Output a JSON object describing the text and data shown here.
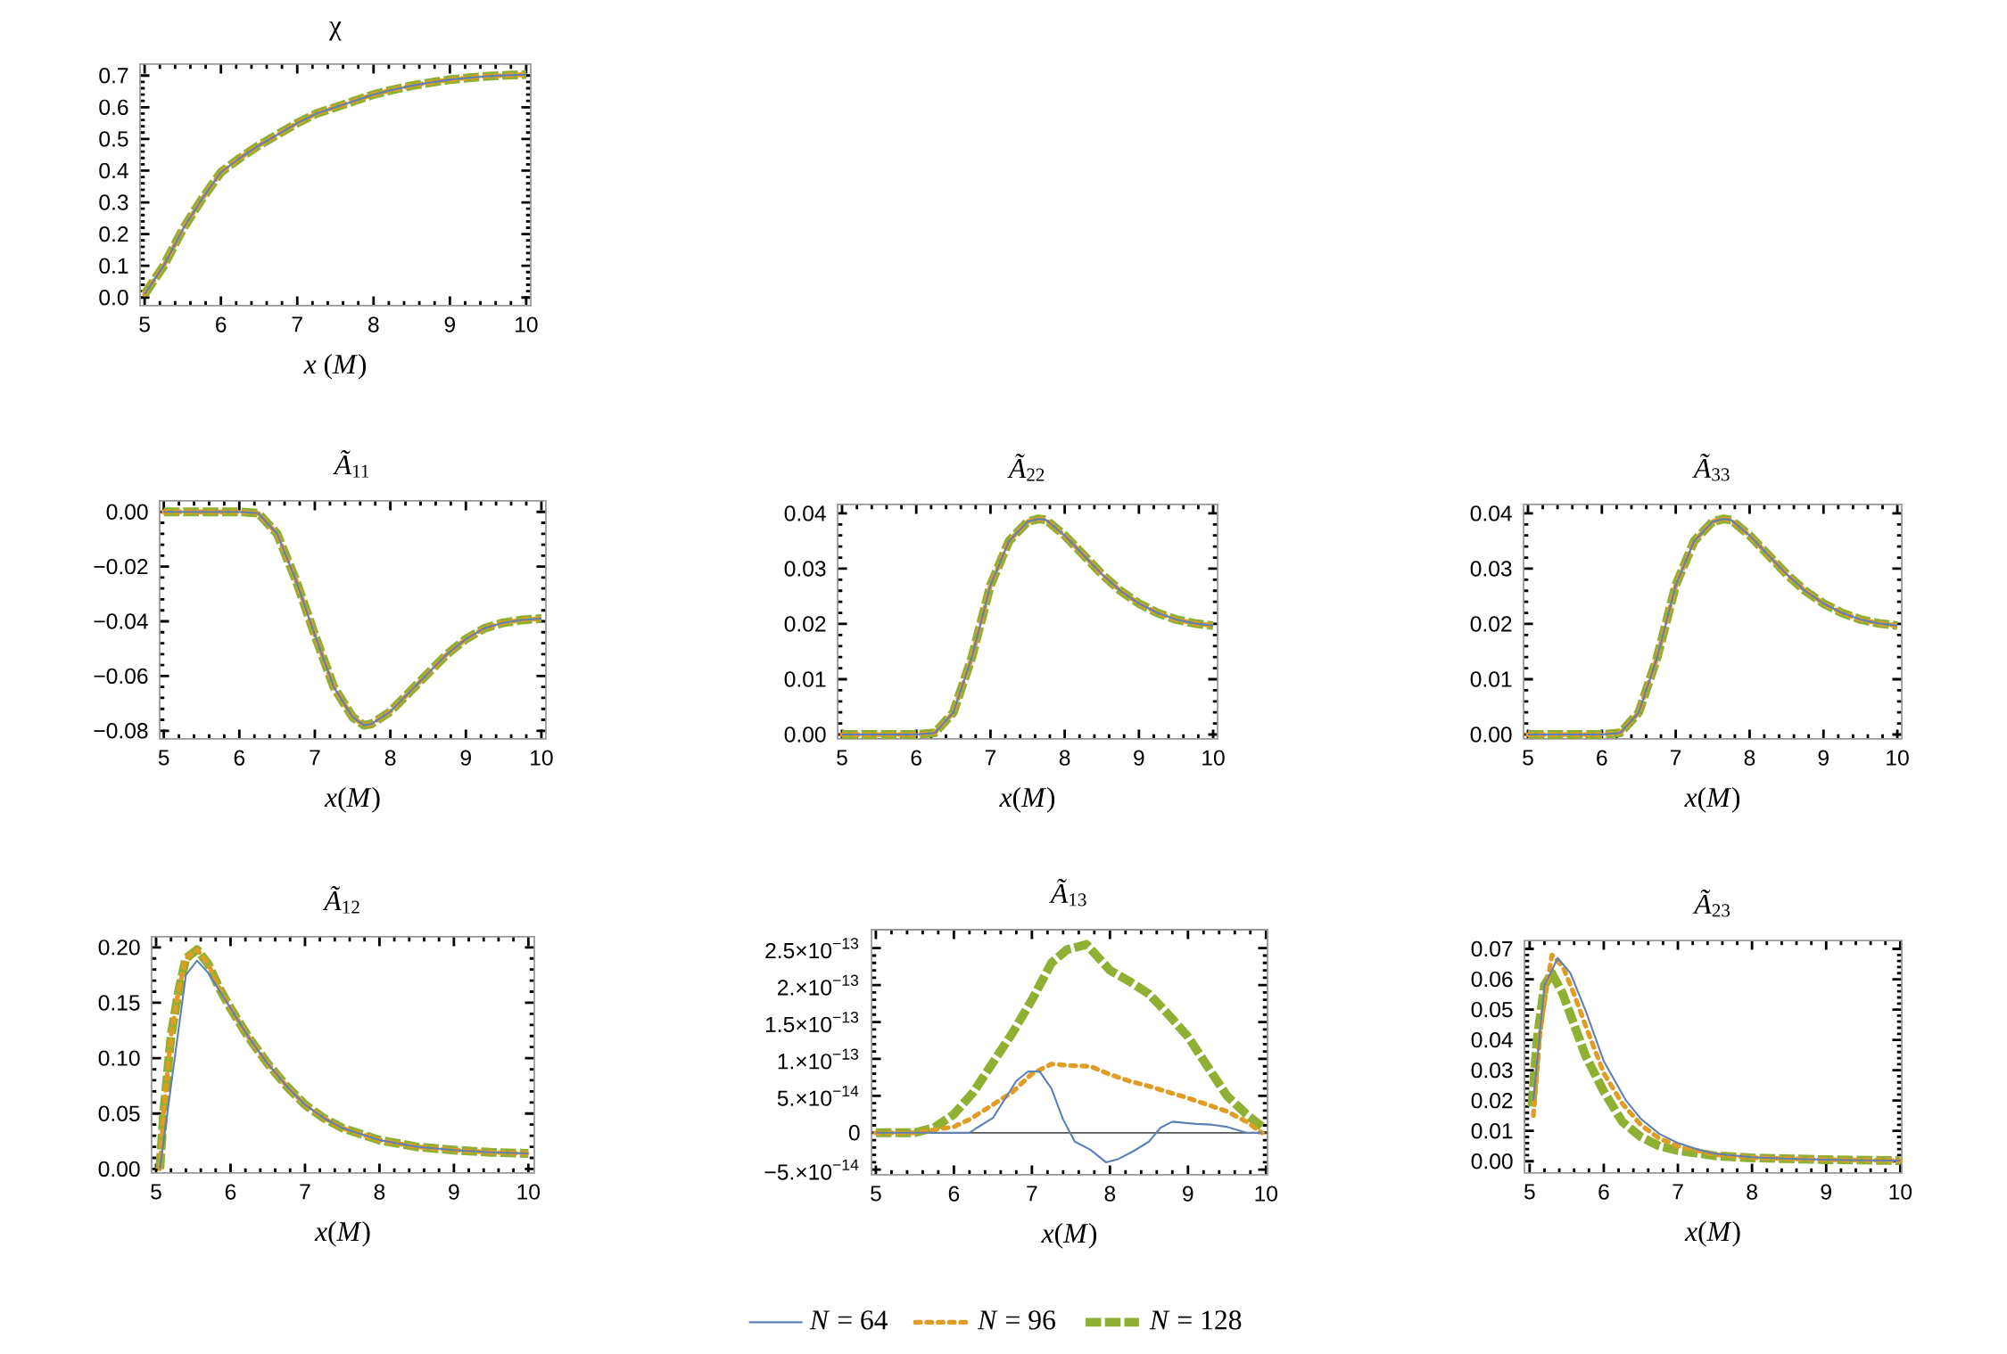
{
  "chart_data": [
    {
      "type": "line",
      "title": "χ",
      "xlabel": "*x* (*M*)",
      "xlim": [
        4.94,
        10.06
      ],
      "ylim": [
        -0.026,
        0.736
      ],
      "xticks": [
        5,
        6,
        7,
        8,
        9,
        10
      ],
      "yticks": [
        {
          "value": 0,
          "label": "0.0"
        },
        {
          "value": 0.1,
          "label": "0.1"
        },
        {
          "value": 0.2,
          "label": "0.2"
        },
        {
          "value": 0.3,
          "label": "0.3"
        },
        {
          "value": 0.4,
          "label": "0.4"
        },
        {
          "value": 0.5,
          "label": "0.5"
        },
        {
          "value": 0.6,
          "label": "0.6"
        },
        {
          "value": 0.7,
          "label": "0.7"
        }
      ],
      "x": [
        5,
        5.25,
        5.5,
        5.75,
        6,
        6.25,
        6.5,
        6.75,
        7,
        7.25,
        7.5,
        7.75,
        8,
        8.25,
        8.5,
        8.75,
        9,
        9.25,
        9.5,
        9.75,
        10
      ],
      "series": [
        {
          "color": "#5e81b5",
          "line_style": "solid",
          "values": [
            0.01,
            0.1,
            0.215,
            0.31,
            0.395,
            0.44,
            0.48,
            0.515,
            0.55,
            0.58,
            0.6,
            0.62,
            0.64,
            0.655,
            0.668,
            0.678,
            0.687,
            0.693,
            0.698,
            0.701,
            0.703
          ]
        },
        {
          "color": "#e19c24",
          "line_style": "dotted",
          "values": [
            0.01,
            0.1,
            0.215,
            0.31,
            0.395,
            0.44,
            0.48,
            0.515,
            0.55,
            0.58,
            0.6,
            0.62,
            0.64,
            0.655,
            0.668,
            0.678,
            0.687,
            0.693,
            0.698,
            0.701,
            0.703
          ]
        },
        {
          "color": "#8fb032",
          "line_style": "dashed",
          "values": [
            0.01,
            0.1,
            0.215,
            0.31,
            0.395,
            0.44,
            0.48,
            0.515,
            0.55,
            0.58,
            0.6,
            0.62,
            0.64,
            0.655,
            0.668,
            0.678,
            0.687,
            0.693,
            0.698,
            0.701,
            0.703
          ]
        }
      ]
    },
    {
      "type": "line",
      "title": "*Ã*$_{11}$",
      "xlabel": "*x*(*M*)",
      "xlim": [
        4.945,
        10.06
      ],
      "ylim": [
        -0.083,
        0.004
      ],
      "xticks": [
        5,
        6,
        7,
        8,
        9,
        10
      ],
      "yticks": [
        {
          "value": 0,
          "label": "0.00"
        },
        {
          "value": -0.02,
          "label": "−0.02"
        },
        {
          "value": -0.04,
          "label": "−0.04"
        },
        {
          "value": -0.06,
          "label": "−0.06"
        },
        {
          "value": -0.08,
          "label": "−0.08"
        }
      ],
      "x": [
        5,
        5.5,
        6,
        6.25,
        6.5,
        6.75,
        7,
        7.25,
        7.5,
        7.65,
        7.75,
        8,
        8.25,
        8.5,
        8.75,
        9,
        9.25,
        9.5,
        9.75,
        10
      ],
      "series": [
        {
          "color": "#5e81b5",
          "line_style": "solid",
          "values": [
            0,
            0,
            0,
            -0.0005,
            -0.008,
            -0.025,
            -0.045,
            -0.064,
            -0.075,
            -0.078,
            -0.0775,
            -0.073,
            -0.066,
            -0.059,
            -0.052,
            -0.0465,
            -0.0425,
            -0.0405,
            -0.0395,
            -0.039
          ]
        },
        {
          "color": "#e19c24",
          "line_style": "dotted",
          "values": [
            0,
            0,
            0,
            -0.0005,
            -0.008,
            -0.025,
            -0.045,
            -0.064,
            -0.075,
            -0.078,
            -0.0775,
            -0.073,
            -0.066,
            -0.059,
            -0.052,
            -0.0465,
            -0.0425,
            -0.0405,
            -0.0395,
            -0.039
          ]
        },
        {
          "color": "#8fb032",
          "line_style": "dashed",
          "values": [
            0,
            0,
            0,
            -0.0005,
            -0.008,
            -0.025,
            -0.045,
            -0.064,
            -0.075,
            -0.078,
            -0.0775,
            -0.073,
            -0.066,
            -0.059,
            -0.052,
            -0.0465,
            -0.0425,
            -0.0405,
            -0.0395,
            -0.039
          ]
        }
      ]
    },
    {
      "type": "line",
      "title": "*Ã*$_{22}$",
      "xlabel": "*x*(*M*)",
      "xlim": [
        4.94,
        10.06
      ],
      "ylim": [
        -0.0008,
        0.0416
      ],
      "xticks": [
        5,
        6,
        7,
        8,
        9,
        10
      ],
      "yticks": [
        {
          "value": 0,
          "label": "0.00"
        },
        {
          "value": 0.01,
          "label": "0.01"
        },
        {
          "value": 0.02,
          "label": "0.02"
        },
        {
          "value": 0.03,
          "label": "0.03"
        },
        {
          "value": 0.04,
          "label": "0.04"
        }
      ],
      "x": [
        5,
        5.5,
        6,
        6.25,
        6.5,
        6.75,
        7,
        7.25,
        7.5,
        7.65,
        7.75,
        8,
        8.25,
        8.5,
        8.75,
        9,
        9.25,
        9.5,
        9.75,
        10
      ],
      "series": [
        {
          "color": "#5e81b5",
          "line_style": "solid",
          "values": [
            0,
            0,
            0,
            0.0003,
            0.004,
            0.014,
            0.027,
            0.035,
            0.0385,
            0.039,
            0.0388,
            0.036,
            0.0325,
            0.029,
            0.026,
            0.0237,
            0.022,
            0.0208,
            0.0201,
            0.0197
          ]
        },
        {
          "color": "#e19c24",
          "line_style": "dotted",
          "values": [
            0,
            0,
            0,
            0.0003,
            0.004,
            0.014,
            0.027,
            0.035,
            0.0385,
            0.039,
            0.0388,
            0.036,
            0.0325,
            0.029,
            0.026,
            0.0237,
            0.022,
            0.0208,
            0.0201,
            0.0197
          ]
        },
        {
          "color": "#8fb032",
          "line_style": "dashed",
          "values": [
            0,
            0,
            0,
            0.0003,
            0.004,
            0.014,
            0.027,
            0.035,
            0.0385,
            0.039,
            0.0388,
            0.036,
            0.0325,
            0.029,
            0.026,
            0.0237,
            0.022,
            0.0208,
            0.0201,
            0.0197
          ]
        }
      ]
    },
    {
      "type": "line",
      "title": "*Ã*$_{33}$",
      "xlabel": "*x*(*M*)",
      "xlim": [
        4.94,
        10.06
      ],
      "ylim": [
        -0.0008,
        0.0416
      ],
      "xticks": [
        5,
        6,
        7,
        8,
        9,
        10
      ],
      "yticks": [
        {
          "value": 0,
          "label": "0.00"
        },
        {
          "value": 0.01,
          "label": "0.01"
        },
        {
          "value": 0.02,
          "label": "0.02"
        },
        {
          "value": 0.03,
          "label": "0.03"
        },
        {
          "value": 0.04,
          "label": "0.04"
        }
      ],
      "x": [
        5,
        5.5,
        6,
        6.25,
        6.5,
        6.75,
        7,
        7.25,
        7.5,
        7.65,
        7.75,
        8,
        8.25,
        8.5,
        8.75,
        9,
        9.25,
        9.5,
        9.75,
        10
      ],
      "series": [
        {
          "color": "#5e81b5",
          "line_style": "solid",
          "values": [
            0,
            0,
            0,
            0.0003,
            0.004,
            0.014,
            0.027,
            0.035,
            0.0385,
            0.039,
            0.0388,
            0.036,
            0.0325,
            0.029,
            0.026,
            0.0237,
            0.022,
            0.0208,
            0.0201,
            0.0197
          ]
        },
        {
          "color": "#e19c24",
          "line_style": "dotted",
          "values": [
            0,
            0,
            0,
            0.0003,
            0.004,
            0.014,
            0.027,
            0.035,
            0.0385,
            0.039,
            0.0388,
            0.036,
            0.0325,
            0.029,
            0.026,
            0.0237,
            0.022,
            0.0208,
            0.0201,
            0.0197
          ]
        },
        {
          "color": "#8fb032",
          "line_style": "dashed",
          "values": [
            0,
            0,
            0,
            0.0003,
            0.004,
            0.014,
            0.027,
            0.035,
            0.0385,
            0.039,
            0.0388,
            0.036,
            0.0325,
            0.029,
            0.026,
            0.0237,
            0.022,
            0.0208,
            0.0201,
            0.0197
          ]
        }
      ]
    },
    {
      "type": "line",
      "title": "*Ã*$_{12}$",
      "xlabel": "*x*(*M*)",
      "xlim": [
        4.94,
        10.08
      ],
      "ylim": [
        -0.0037,
        0.2095
      ],
      "xticks": [
        5,
        6,
        7,
        8,
        9,
        10
      ],
      "yticks": [
        {
          "value": 0,
          "label": "0.00"
        },
        {
          "value": 0.05,
          "label": "0.05"
        },
        {
          "value": 0.1,
          "label": "0.10"
        },
        {
          "value": 0.15,
          "label": "0.15"
        },
        {
          "value": 0.2,
          "label": "0.20"
        }
      ],
      "series": [
        {
          "color": "#5e81b5",
          "line_style": "solid",
          "x": [
            5.05,
            5.4,
            5.55,
            5.7,
            6,
            6.25,
            6.5,
            6.75,
            7,
            7.25,
            7.5,
            8,
            8.5,
            9,
            9.5,
            10
          ],
          "values": [
            0,
            0.175,
            0.188,
            0.177,
            0.145,
            0.118,
            0.095,
            0.075,
            0.058,
            0.046,
            0.037,
            0.026,
            0.02,
            0.017,
            0.015,
            0.014
          ]
        },
        {
          "color": "#e19c24",
          "line_style": "dotted",
          "x": [
            5.05,
            5.1,
            5.2,
            5.3,
            5.4,
            5.55,
            5.7,
            5.85,
            6,
            6.25,
            6.5,
            6.75,
            7,
            7.25,
            7.5,
            8,
            8.5,
            9,
            9.5,
            10
          ],
          "values": [
            0,
            0.05,
            0.12,
            0.16,
            0.19,
            0.198,
            0.185,
            0.163,
            0.145,
            0.118,
            0.095,
            0.075,
            0.058,
            0.046,
            0.037,
            0.026,
            0.02,
            0.017,
            0.015,
            0.014
          ]
        },
        {
          "color": "#8fb032",
          "line_style": "dashed",
          "x": [
            5.05,
            5.1,
            5.2,
            5.3,
            5.4,
            5.55,
            5.7,
            5.85,
            6,
            6.25,
            6.5,
            6.75,
            7,
            7.25,
            7.5,
            8,
            8.5,
            9,
            9.5,
            10
          ],
          "values": [
            0,
            0.05,
            0.12,
            0.16,
            0.19,
            0.198,
            0.185,
            0.163,
            0.145,
            0.118,
            0.095,
            0.075,
            0.058,
            0.046,
            0.037,
            0.026,
            0.02,
            0.017,
            0.015,
            0.014
          ]
        }
      ]
    },
    {
      "type": "line",
      "title": "*Ã*$_{13}$",
      "xlabel": "*x*(*M*)",
      "xlim": [
        4.944,
        10.02
      ],
      "ylim": [
        -5.7e-14,
        2.75e-13
      ],
      "xticks": [
        5,
        6,
        7,
        8,
        9,
        10
      ],
      "yticks": [
        {
          "value": -5e-14,
          "label": "−5.×10$^{−14}$"
        },
        {
          "value": 0,
          "label": "0"
        },
        {
          "value": 5e-14,
          "label": "5.×10$^{−14}$"
        },
        {
          "value": 1e-13,
          "label": "1.×10$^{−13}$"
        },
        {
          "value": 1.5e-13,
          "label": "1.5×10$^{−13}$"
        },
        {
          "value": 2e-13,
          "label": "2.×10$^{−13}$"
        },
        {
          "value": 2.5e-13,
          "label": "2.5×10$^{−13}$"
        }
      ],
      "ref_lines": [
        {
          "axis": "y",
          "value": 0,
          "color": "#555555"
        }
      ],
      "legend": "bottom",
      "series": [
        {
          "name": "*N* = 64",
          "color": "#5e81b5",
          "line_style": "solid",
          "x": [
            5,
            5.5,
            6,
            6.2,
            6.3,
            6.5,
            6.65,
            6.8,
            6.95,
            7.1,
            7.25,
            7.4,
            7.55,
            7.75,
            7.95,
            8.1,
            8.3,
            8.5,
            8.65,
            8.8,
            9.1,
            9.3,
            9.5,
            9.75,
            9.95
          ],
          "values": [
            0,
            0,
            0,
            0,
            7e-15,
            2e-14,
            4.5e-14,
            7e-14,
            8.3e-14,
            8.3e-14,
            6e-14,
            1.8e-14,
            -1.2e-14,
            -2.3e-14,
            -4e-14,
            -3.6e-14,
            -2.5e-14,
            -1.2e-14,
            7e-15,
            1.5e-14,
            1.2e-14,
            1.1e-14,
            8e-15,
            0,
            0
          ]
        },
        {
          "name": "*N* = 96",
          "color": "#e19c24",
          "line_style": "dotted",
          "x": [
            5,
            5.5,
            6,
            6.2,
            6.5,
            6.75,
            7,
            7.25,
            7.5,
            7.75,
            8,
            8.25,
            8.5,
            8.75,
            9,
            9.25,
            9.5,
            9.75,
            9.95
          ],
          "values": [
            0,
            0,
            8e-15,
            1.8e-14,
            3.8e-14,
            5.5e-14,
            8e-14,
            9.3e-14,
            9.1e-14,
            9e-14,
            7.9e-14,
            7e-14,
            6.3e-14,
            5.5e-14,
            4.7e-14,
            3.8e-14,
            2.9e-14,
            1.5e-14,
            0
          ]
        },
        {
          "name": "*N* = 128",
          "color": "#8fb032",
          "line_style": "dashed",
          "x": [
            5,
            5.5,
            5.75,
            6,
            6.25,
            6.5,
            6.75,
            7,
            7.25,
            7.45,
            7.7,
            8,
            8.25,
            8.5,
            8.75,
            9,
            9.25,
            9.5,
            9.75,
            9.95
          ],
          "values": [
            0,
            0,
            7e-15,
            2.5e-14,
            5.5e-14,
            9.5e-14,
            1.35e-13,
            1.8e-13,
            2.3e-13,
            2.48e-13,
            2.55e-13,
            2.2e-13,
            2.05e-13,
            1.88e-13,
            1.6e-13,
            1.3e-13,
            9e-14,
            5e-14,
            2.5e-14,
            8e-15
          ]
        }
      ]
    },
    {
      "type": "line",
      "title": "*Ã*$_{23}$",
      "xlabel": "*x*(*M*)",
      "xlim": [
        4.93,
        10.02
      ],
      "ylim": [
        -0.0039,
        0.0728
      ],
      "xticks": [
        5,
        6,
        7,
        8,
        9,
        10
      ],
      "yticks": [
        {
          "value": 0,
          "label": "0.00"
        },
        {
          "value": 0.01,
          "label": "0.01"
        },
        {
          "value": 0.02,
          "label": "0.02"
        },
        {
          "value": 0.03,
          "label": "0.03"
        },
        {
          "value": 0.04,
          "label": "0.04"
        },
        {
          "value": 0.05,
          "label": "0.05"
        },
        {
          "value": 0.06,
          "label": "0.06"
        },
        {
          "value": 0.07,
          "label": "0.07"
        }
      ],
      "series": [
        {
          "color": "#5e81b5",
          "line_style": "solid",
          "x": [
            5.05,
            5.2,
            5.38,
            5.55,
            5.75,
            6,
            6.3,
            6.5,
            6.75,
            7,
            7.25,
            7.5,
            8,
            8.5,
            9,
            9.5,
            10
          ],
          "values": [
            0.02,
            0.058,
            0.067,
            0.062,
            0.05,
            0.033,
            0.02,
            0.014,
            0.009,
            0.006,
            0.004,
            0.0025,
            0.0013,
            0.0008,
            0.0005,
            0.0003,
            0.0002
          ]
        },
        {
          "color": "#e19c24",
          "line_style": "dotted",
          "x": [
            5.05,
            5.15,
            5.3,
            5.45,
            5.6,
            5.75,
            6,
            6.25,
            6.5,
            6.75,
            7,
            7.5,
            8,
            9,
            10
          ],
          "values": [
            0.015,
            0.045,
            0.068,
            0.064,
            0.055,
            0.045,
            0.029,
            0.019,
            0.012,
            0.0075,
            0.005,
            0.0022,
            0.0012,
            0.0005,
            0.0002
          ]
        },
        {
          "color": "#8fb032",
          "line_style": "dashed",
          "x": [
            5.03,
            5.1,
            5.2,
            5.3,
            5.45,
            5.6,
            5.75,
            6,
            6.25,
            6.5,
            6.75,
            7,
            7.5,
            8,
            9,
            10
          ],
          "values": [
            0.018,
            0.04,
            0.058,
            0.062,
            0.055,
            0.045,
            0.035,
            0.023,
            0.013,
            0.008,
            0.005,
            0.0035,
            0.0018,
            0.0011,
            0.0005,
            0.0002
          ]
        }
      ]
    }
  ]
}
